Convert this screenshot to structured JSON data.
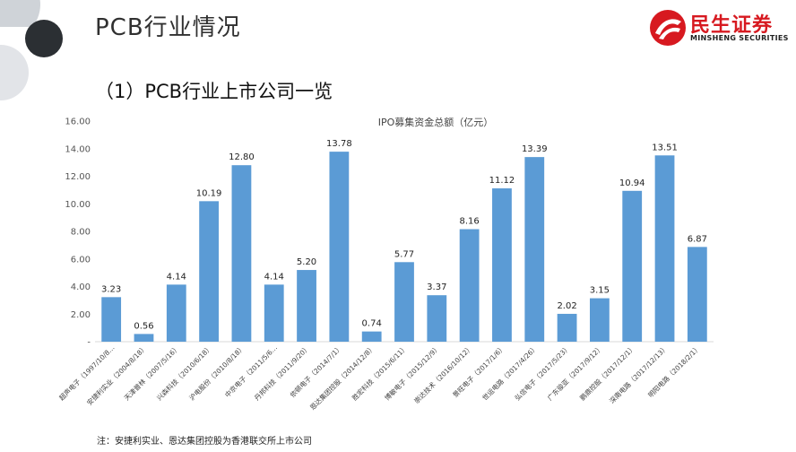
{
  "header": {
    "title": "PCB行业情况",
    "section": "（1）PCB行业上市公司一览"
  },
  "logo": {
    "name": "民生证券",
    "subtitle": "MINSHENG SECURITIES",
    "color": "#d71920"
  },
  "footnote": "注：安捷利实业、恩达集团控股为香港联交所上市公司",
  "chart_data": {
    "type": "bar",
    "title": "IPO募集资金总额（亿元）",
    "bar_color": "#5b9bd5",
    "ylim": [
      0,
      16
    ],
    "y_ticks": [
      "-",
      "2.00",
      "4.00",
      "6.00",
      "8.00",
      "10.00",
      "12.00",
      "14.00",
      "16.00"
    ],
    "grid": false,
    "legend": "none",
    "categories": [
      "超声电子（1997/10/8…",
      "安捷利实业（2004/8/18）",
      "天津普林（2007/5/16）",
      "兴森科技（2010/6/18）",
      "沪电股份（2010/8/18）",
      "中京电子（2011/5/6…",
      "丹邦科技（2011/9/20）",
      "依顿电子（2014/7/1）",
      "恩达集团控股（2014/12/8）",
      "胜宏科技（2015/6/11）",
      "博敏电子（2015/12/9）",
      "崇达技术（2016/10/12）",
      "景旺电子（2017/1/6）",
      "世运电路（2017/4/26）",
      "弘信电子（2017/5/23）",
      "广东骏亚（2017/9/12）",
      "鹏鼎控股（2017/12/1）",
      "深南电路（2017/12/13）",
      "明阳电路（2018/2/1）"
    ],
    "values": [
      3.23,
      0.56,
      4.14,
      10.19,
      12.8,
      4.14,
      5.2,
      13.78,
      0.74,
      5.77,
      3.37,
      8.16,
      11.12,
      13.39,
      2.02,
      3.15,
      10.94,
      13.51,
      6.87
    ],
    "value_labels": [
      "3.23",
      "0.56",
      "4.14",
      "10.19",
      "12.80",
      "4.14",
      "5.20",
      "13.78",
      "0.74",
      "5.77",
      "3.37",
      "8.16",
      "11.12",
      "13.39",
      "2.02",
      "3.15",
      "10.94",
      "13.51",
      "6.87"
    ]
  }
}
